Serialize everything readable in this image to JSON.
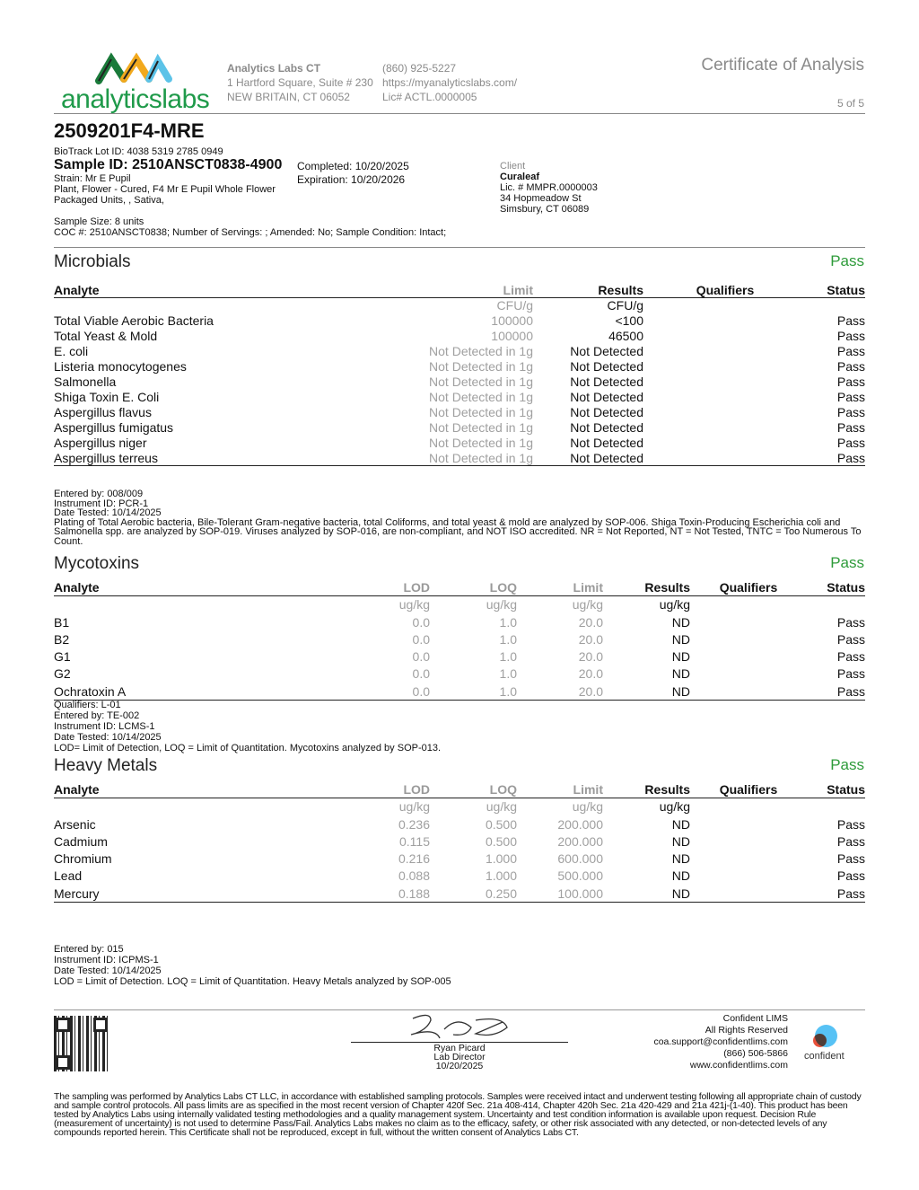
{
  "header": {
    "logo_text": "analyticslabs",
    "lab_name": "Analytics Labs CT",
    "address1": "1 Hartford Square, Suite # 230",
    "address2": "NEW BRITAIN, CT 06052",
    "phone": "(860) 925-5227",
    "website": "https://myanalyticslabs.com/",
    "license": "Lic# ACTL.0000005",
    "doc_title": "Certificate of Analysis",
    "page": "5 of 5"
  },
  "sample": {
    "product_id": "2509201F4-MRE",
    "biotrack": "BioTrack Lot ID: 4038 5319 2785 0949",
    "sample_id": "Sample ID: 2510ANSCT0838-4900",
    "strain": "Strain: Mr E Pupil",
    "type": "Plant, Flower - Cured, F4 Mr E Pupil  Whole Flower",
    "packaging": "Packaged Units, , Sativa,",
    "completed": "Completed: 10/20/2025",
    "expiration": "Expiration: 10/20/2026",
    "size": "Sample Size: 8 units",
    "coc": "COC #: 2510ANSCT0838; Number of Servings: ; Amended: No; Sample Condition: Intact;"
  },
  "client": {
    "label": "Client",
    "name": "Curaleaf",
    "license": "Lic. # MMPR.0000003",
    "address1": "34 Hopmeadow St",
    "address2": "Simsbury, CT 06089"
  },
  "colors": {
    "pass": "#2e9b3a"
  },
  "microbials": {
    "title": "Microbials",
    "status": "Pass",
    "headers": [
      "Analyte",
      "Limit",
      "Results",
      "Qualifiers",
      "Status"
    ],
    "units": [
      "",
      "CFU/g",
      "CFU/g",
      "",
      ""
    ],
    "rows": [
      [
        "Total Viable Aerobic Bacteria",
        "100000",
        "<100",
        "",
        "Pass"
      ],
      [
        "Total Yeast & Mold",
        "100000",
        "46500",
        "",
        "Pass"
      ],
      [
        "E. coli",
        "Not Detected in 1g",
        "Not Detected",
        "",
        "Pass"
      ],
      [
        "Listeria monocytogenes",
        "Not Detected in 1g",
        "Not Detected",
        "",
        "Pass"
      ],
      [
        "Salmonella",
        "Not Detected in 1g",
        "Not Detected",
        "",
        "Pass"
      ],
      [
        "Shiga Toxin E. Coli",
        "Not Detected in 1g",
        "Not Detected",
        "",
        "Pass"
      ],
      [
        "Aspergillus flavus",
        "Not Detected in 1g",
        "Not Detected",
        "",
        "Pass"
      ],
      [
        "Aspergillus fumigatus",
        "Not Detected in 1g",
        "Not Detected",
        "",
        "Pass"
      ],
      [
        "Aspergillus niger",
        "Not Detected in 1g",
        "Not Detected",
        "",
        "Pass"
      ],
      [
        "Aspergillus terreus",
        "Not Detected in 1g",
        "Not Detected",
        "",
        "Pass"
      ]
    ],
    "notes": [
      "Entered by: 008/009",
      "Instrument ID: PCR-1",
      "Date Tested: 10/14/2025",
      "Plating of Total Aerobic bacteria, Bile-Tolerant Gram-negative bacteria, total Coliforms, and total yeast & mold are analyzed by SOP-006. Shiga Toxin-Producing Escherichia coli and Salmonella spp. are analyzed by SOP-019. Viruses analyzed by SOP-016, are non-compliant, and NOT ISO accredited. NR = Not Reported, NT = Not Tested, TNTC = Too Numerous To Count."
    ]
  },
  "mycotoxins": {
    "title": "Mycotoxins",
    "status": "Pass",
    "headers": [
      "Analyte",
      "LOD",
      "LOQ",
      "Limit",
      "Results",
      "Qualifiers",
      "Status"
    ],
    "units": [
      "",
      "ug/kg",
      "ug/kg",
      "ug/kg",
      "ug/kg",
      "",
      ""
    ],
    "rows": [
      [
        "B1",
        "0.0",
        "1.0",
        "20.0",
        "ND",
        "",
        "Pass"
      ],
      [
        "B2",
        "0.0",
        "1.0",
        "20.0",
        "ND",
        "",
        "Pass"
      ],
      [
        "G1",
        "0.0",
        "1.0",
        "20.0",
        "ND",
        "",
        "Pass"
      ],
      [
        "G2",
        "0.0",
        "1.0",
        "20.0",
        "ND",
        "",
        "Pass"
      ],
      [
        "Ochratoxin A",
        "0.0",
        "1.0",
        "20.0",
        "ND",
        "",
        "Pass"
      ]
    ],
    "notes": [
      "Qualifiers: L-01",
      "Entered by: TE-002",
      "Instrument ID: LCMS-1",
      "Date Tested: 10/14/2025",
      "LOD= Limit of Detection, LOQ = Limit of Quantitation. Mycotoxins analyzed by SOP-013."
    ]
  },
  "heavy_metals": {
    "title": "Heavy Metals",
    "status": "Pass",
    "headers": [
      "Analyte",
      "LOD",
      "LOQ",
      "Limit",
      "Results",
      "Qualifiers",
      "Status"
    ],
    "units": [
      "",
      "ug/kg",
      "ug/kg",
      "ug/kg",
      "ug/kg",
      "",
      ""
    ],
    "rows": [
      [
        "Arsenic",
        "0.236",
        "0.500",
        "200.000",
        "ND",
        "",
        "Pass"
      ],
      [
        "Cadmium",
        "0.115",
        "0.500",
        "200.000",
        "ND",
        "",
        "Pass"
      ],
      [
        "Chromium",
        "0.216",
        "1.000",
        "600.000",
        "ND",
        "",
        "Pass"
      ],
      [
        "Lead",
        "0.088",
        "1.000",
        "500.000",
        "ND",
        "",
        "Pass"
      ],
      [
        "Mercury",
        "0.188",
        "0.250",
        "100.000",
        "ND",
        "",
        "Pass"
      ]
    ],
    "notes": [
      "Entered by: 015",
      "Instrument ID: ICPMS-1",
      "Date Tested: 10/14/2025",
      "LOD = Limit of Detection. LOQ = Limit of Quantitation. Heavy Metals analyzed by SOP-005"
    ]
  },
  "signature": {
    "name": "Ryan Picard",
    "title": "Lab Director",
    "date": "10/20/2025"
  },
  "lims": {
    "line1": "Confident LIMS",
    "line2": "All Rights Reserved",
    "email": "coa.support@confidentlims.com",
    "phone": "(866) 506-5866",
    "website": "www.confidentlims.com",
    "logo_text": "confident"
  },
  "disclaimer": "The sampling was performed by Analytics Labs CT LLC, in accordance with established sampling protocols. Samples were received intact and underwent testing following all appropriate chain of custody and sample control protocols. All pass limits are as specified in the most recent version of Chapter 420f Sec. 21a 408-414, Chapter 420h Sec. 21a 420-429 and 21a 421j-(1-40). This product has been tested by Analytics Labs using internally validated testing methodologies and a quality management system. Uncertainty and test condition information is available upon request. Decision Rule (measurement of uncertainty) is not used to determine Pass/Fail. Analytics Labs makes no claim as to the efficacy, safety, or other risk associated with any detected, or non-detected levels of any compounds reported herein. This Certificate shall not be reproduced, except in full, without the written consent of Analytics Labs CT."
}
